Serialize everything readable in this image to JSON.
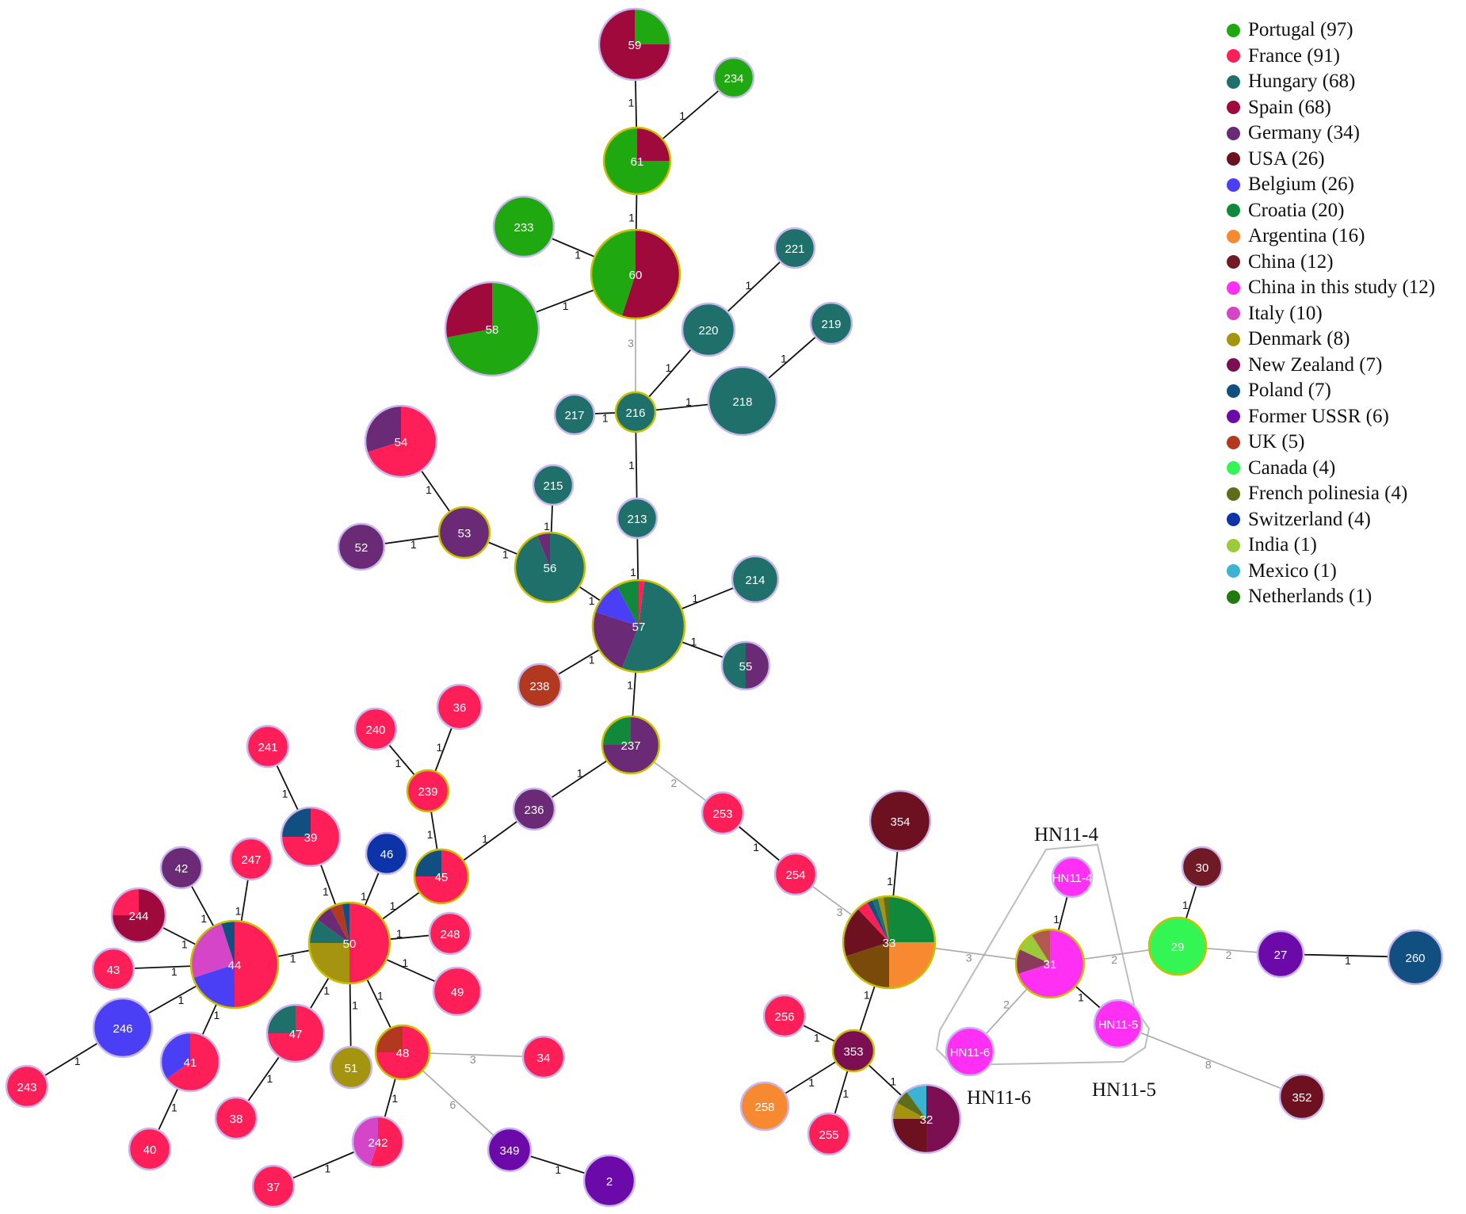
{
  "legend": [
    {
      "label": "Portugal (97)",
      "color": "#1fa810"
    },
    {
      "label": "France (91)",
      "color": "#ff1f58"
    },
    {
      "label": "Hungary (68)",
      "color": "#1f706a"
    },
    {
      "label": "Spain (68)",
      "color": "#a0093c"
    },
    {
      "label": "Germany (34)",
      "color": "#6a2a75"
    },
    {
      "label": "USA (26)",
      "color": "#6d1020"
    },
    {
      "label": "Belgium (26)",
      "color": "#4b3ff5"
    },
    {
      "label": "Croatia (20)",
      "color": "#108a3a"
    },
    {
      "label": "Argentina (16)",
      "color": "#f78a30"
    },
    {
      "label": "China (12)",
      "color": "#6f1a24"
    },
    {
      "label": "China in this study (12)",
      "color": "#ff30f3"
    },
    {
      "label": "Italy (10)",
      "color": "#d545c8"
    },
    {
      "label": "Denmark (8)",
      "color": "#a49410"
    },
    {
      "label": "New Zealand (7)",
      "color": "#7b0f52"
    },
    {
      "label": "Poland (7)",
      "color": "#104f80"
    },
    {
      "label": "Former USSR (6)",
      "color": "#6b0aa8"
    },
    {
      "label": "UK (5)",
      "color": "#b2381f"
    },
    {
      "label": "Canada (4)",
      "color": "#33f554"
    },
    {
      "label": "French polinesia (4)",
      "color": "#5f6c1a"
    },
    {
      "label": "Switzerland (4)",
      "color": "#0c34a8"
    },
    {
      "label": "India (1)",
      "color": "#9ccb3a"
    },
    {
      "label": "Mexico (1)",
      "color": "#3ab4d2"
    },
    {
      "label": "Netherlands (1)",
      "color": "#207a10"
    }
  ],
  "group_labels": {
    "hn11_4": "HN11-4",
    "hn11_5": "HN11-5",
    "hn11_6": "HN11-6"
  },
  "nodes": [
    {
      "id": "59",
      "parts": [
        [
          "#1fa810",
          1
        ],
        [
          "#a0093c",
          3
        ]
      ],
      "border": "#c9b8f0"
    },
    {
      "id": "234",
      "parts": [
        [
          "#1fa810",
          1
        ]
      ],
      "border": "#c9b8f0"
    },
    {
      "id": "61",
      "parts": [
        [
          "#a0093c",
          1
        ],
        [
          "#1fa810",
          3
        ]
      ],
      "border": "#c8c000"
    },
    {
      "id": "233",
      "parts": [
        [
          "#1fa810",
          1
        ]
      ],
      "border": "#c9b8f0"
    },
    {
      "id": "60",
      "parts": [
        [
          "#a0093c",
          55
        ],
        [
          "#1fa810",
          45
        ]
      ],
      "border": "#c8c000"
    },
    {
      "id": "58",
      "parts": [
        [
          "#1fa810",
          72
        ],
        [
          "#a0093c",
          28
        ]
      ],
      "border": "#c9b8f0"
    },
    {
      "id": "221",
      "parts": [
        [
          "#1f706a",
          1
        ]
      ],
      "border": "#c9b8f0"
    },
    {
      "id": "220",
      "parts": [
        [
          "#1f706a",
          1
        ]
      ],
      "border": "#c9b8f0"
    },
    {
      "id": "219",
      "parts": [
        [
          "#1f706a",
          1
        ]
      ],
      "border": "#c9b8f0"
    },
    {
      "id": "218",
      "parts": [
        [
          "#1f706a",
          1
        ]
      ],
      "border": "#c9b8f0"
    },
    {
      "id": "217",
      "parts": [
        [
          "#1f706a",
          1
        ]
      ],
      "border": "#c9b8f0"
    },
    {
      "id": "216",
      "parts": [
        [
          "#1f706a",
          1
        ]
      ],
      "border": "#c8c000"
    },
    {
      "id": "54",
      "parts": [
        [
          "#ff1f58",
          70
        ],
        [
          "#6a2a75",
          30
        ]
      ],
      "border": "#c9b8f0"
    },
    {
      "id": "215",
      "parts": [
        [
          "#1f706a",
          1
        ]
      ],
      "border": "#c9b8f0"
    },
    {
      "id": "213",
      "parts": [
        [
          "#1f706a",
          1
        ]
      ],
      "border": "#c9b8f0"
    },
    {
      "id": "53",
      "parts": [
        [
          "#6a2a75",
          1
        ]
      ],
      "border": "#c8c000"
    },
    {
      "id": "52",
      "parts": [
        [
          "#6a2a75",
          1
        ]
      ],
      "border": "#c9b8f0"
    },
    {
      "id": "56",
      "parts": [
        [
          "#1f706a",
          94
        ],
        [
          "#6a2a75",
          6
        ]
      ],
      "border": "#c8c000"
    },
    {
      "id": "57",
      "parts": [
        [
          "#ff1f58",
          2
        ],
        [
          "#1f706a",
          54
        ],
        [
          "#6a2a75",
          24
        ],
        [
          "#4b3ff5",
          12
        ],
        [
          "#108a3a",
          8
        ]
      ],
      "border": "#c8c000"
    },
    {
      "id": "214",
      "parts": [
        [
          "#1f706a",
          1
        ]
      ],
      "border": "#c9b8f0"
    },
    {
      "id": "55",
      "parts": [
        [
          "#6a2a75",
          1
        ],
        [
          "#1f706a",
          1
        ]
      ],
      "border": "#c9b8f0"
    },
    {
      "id": "238",
      "parts": [
        [
          "#b2381f",
          1
        ]
      ],
      "border": "#c9b8f0"
    },
    {
      "id": "36",
      "parts": [
        [
          "#ff1f58",
          1
        ]
      ],
      "border": "#c9b8f0"
    },
    {
      "id": "240",
      "parts": [
        [
          "#ff1f58",
          1
        ]
      ],
      "border": "#c9b8f0"
    },
    {
      "id": "241",
      "parts": [
        [
          "#ff1f58",
          1
        ]
      ],
      "border": "#c9b8f0"
    },
    {
      "id": "239",
      "parts": [
        [
          "#ff1f58",
          1
        ]
      ],
      "border": "#c8c000"
    },
    {
      "id": "237",
      "parts": [
        [
          "#6a2a75",
          75
        ],
        [
          "#108a3a",
          25
        ]
      ],
      "border": "#c8c000"
    },
    {
      "id": "236",
      "parts": [
        [
          "#6a2a75",
          1
        ]
      ],
      "border": "#c9b8f0"
    },
    {
      "id": "253",
      "parts": [
        [
          "#ff1f58",
          1
        ]
      ],
      "border": "#c9b8f0"
    },
    {
      "id": "354",
      "parts": [
        [
          "#6d1020",
          1
        ]
      ],
      "border": "#c9b8f0"
    },
    {
      "id": "39",
      "parts": [
        [
          "#ff1f58",
          75
        ],
        [
          "#104f80",
          25
        ]
      ],
      "border": "#c9b8f0"
    },
    {
      "id": "46",
      "parts": [
        [
          "#0c34a8",
          1
        ]
      ],
      "border": "#c9b8f0"
    },
    {
      "id": "247",
      "parts": [
        [
          "#ff1f58",
          1
        ]
      ],
      "border": "#c9b8f0"
    },
    {
      "id": "42",
      "parts": [
        [
          "#6a2a75",
          1
        ]
      ],
      "border": "#c9b8f0"
    },
    {
      "id": "45",
      "parts": [
        [
          "#ff1f58",
          75
        ],
        [
          "#104f80",
          25
        ]
      ],
      "border": "#c8c000"
    },
    {
      "id": "254",
      "parts": [
        [
          "#ff1f58",
          1
        ]
      ],
      "border": "#c9b8f0"
    },
    {
      "id": "HN11-4",
      "parts": [
        [
          "#ff30f3",
          1
        ]
      ],
      "border": "#c9b8f0"
    },
    {
      "id": "30",
      "parts": [
        [
          "#6f1a24",
          1
        ]
      ],
      "border": "#c9b8f0"
    },
    {
      "id": "244",
      "parts": [
        [
          "#a0093c",
          75
        ],
        [
          "#ff1f58",
          25
        ]
      ],
      "border": "#c9b8f0"
    },
    {
      "id": "50",
      "parts": [
        [
          "#ff1f58",
          50
        ],
        [
          "#a49410",
          25
        ],
        [
          "#1f706a",
          10
        ],
        [
          "#6a2a75",
          7
        ],
        [
          "#b2381f",
          5
        ],
        [
          "#104f80",
          3
        ]
      ],
      "border": "#c8c000"
    },
    {
      "id": "248",
      "parts": [
        [
          "#ff1f58",
          1
        ]
      ],
      "border": "#c9b8f0"
    },
    {
      "id": "33",
      "parts": [
        [
          "#108a3a",
          25
        ],
        [
          "#f78a30",
          25
        ],
        [
          "#7a4a0a",
          20
        ],
        [
          "#6d1020",
          18
        ],
        [
          "#ff1f58",
          4
        ],
        [
          "#104f80",
          2
        ],
        [
          "#1f706a",
          2
        ],
        [
          "#a49410",
          2
        ],
        [
          "#5f6c1a",
          2
        ]
      ],
      "border": "#c8c000"
    },
    {
      "id": "31",
      "parts": [
        [
          "#ff30f3",
          70
        ],
        [
          "#8a3a5a",
          12
        ],
        [
          "#9ccb3a",
          9
        ],
        [
          "#b25a50",
          9
        ]
      ],
      "border": "#c8c000"
    },
    {
      "id": "29",
      "parts": [
        [
          "#33f554",
          1
        ]
      ],
      "border": "#c8c000"
    },
    {
      "id": "27",
      "parts": [
        [
          "#6b0aa8",
          1
        ]
      ],
      "border": "#c9b8f0"
    },
    {
      "id": "260",
      "parts": [
        [
          "#104f80",
          1
        ]
      ],
      "border": "#c9b8f0"
    },
    {
      "id": "43",
      "parts": [
        [
          "#ff1f58",
          1
        ]
      ],
      "border": "#c9b8f0"
    },
    {
      "id": "44",
      "parts": [
        [
          "#ff1f58",
          50
        ],
        [
          "#4b3ff5",
          20
        ],
        [
          "#d545c8",
          25
        ],
        [
          "#104f80",
          5
        ]
      ],
      "border": "#c8c000"
    },
    {
      "id": "49",
      "parts": [
        [
          "#ff1f58",
          1
        ]
      ],
      "border": "#c9b8f0"
    },
    {
      "id": "246",
      "parts": [
        [
          "#4b3ff5",
          1
        ]
      ],
      "border": "#c9b8f0"
    },
    {
      "id": "47",
      "parts": [
        [
          "#ff1f58",
          75
        ],
        [
          "#1f706a",
          25
        ]
      ],
      "border": "#c9b8f0"
    },
    {
      "id": "256",
      "parts": [
        [
          "#ff1f58",
          1
        ]
      ],
      "border": "#c9b8f0"
    },
    {
      "id": "HN11-5",
      "parts": [
        [
          "#ff30f3",
          1
        ]
      ],
      "border": "#c9b8f0"
    },
    {
      "id": "HN11-6",
      "parts": [
        [
          "#ff30f3",
          1
        ]
      ],
      "border": "#c9b8f0"
    },
    {
      "id": "41",
      "parts": [
        [
          "#ff1f58",
          65
        ],
        [
          "#4b3ff5",
          35
        ]
      ],
      "border": "#c9b8f0"
    },
    {
      "id": "51",
      "parts": [
        [
          "#a49410",
          1
        ]
      ],
      "border": "#c9b8f0"
    },
    {
      "id": "48",
      "parts": [
        [
          "#ff1f58",
          75
        ],
        [
          "#b2381f",
          25
        ]
      ],
      "border": "#c8c000"
    },
    {
      "id": "34",
      "parts": [
        [
          "#ff1f58",
          1
        ]
      ],
      "border": "#c9b8f0"
    },
    {
      "id": "353",
      "parts": [
        [
          "#7b0f52",
          1
        ]
      ],
      "border": "#c8c000"
    },
    {
      "id": "243",
      "parts": [
        [
          "#ff1f58",
          1
        ]
      ],
      "border": "#c9b8f0"
    },
    {
      "id": "38",
      "parts": [
        [
          "#ff1f58",
          1
        ]
      ],
      "border": "#c9b8f0"
    },
    {
      "id": "258",
      "parts": [
        [
          "#f78a30",
          1
        ]
      ],
      "border": "#c9b8f0"
    },
    {
      "id": "32",
      "parts": [
        [
          "#7b0f52",
          50
        ],
        [
          "#6d1020",
          25
        ],
        [
          "#a49410",
          8
        ],
        [
          "#5f6c1a",
          7
        ],
        [
          "#3ab4d2",
          10
        ]
      ],
      "border": "#c9b8f0"
    },
    {
      "id": "352",
      "parts": [
        [
          "#6d1020",
          1
        ]
      ],
      "border": "#c9b8f0"
    },
    {
      "id": "242",
      "parts": [
        [
          "#ff1f58",
          55
        ],
        [
          "#d545c8",
          45
        ]
      ],
      "border": "#c9b8f0"
    },
    {
      "id": "349",
      "parts": [
        [
          "#6b0aa8",
          1
        ]
      ],
      "border": "#c9b8f0"
    },
    {
      "id": "40",
      "parts": [
        [
          "#ff1f58",
          1
        ]
      ],
      "border": "#c9b8f0"
    },
    {
      "id": "255",
      "parts": [
        [
          "#ff1f58",
          1
        ]
      ],
      "border": "#c9b8f0"
    },
    {
      "id": "2",
      "parts": [
        [
          "#6b0aa8",
          1
        ]
      ],
      "border": "#c9b8f0"
    },
    {
      "id": "37",
      "parts": [
        [
          "#ff1f58",
          1
        ]
      ],
      "border": "#c9b8f0"
    }
  ],
  "edges": [
    {
      "a": "59",
      "b": "61",
      "label": "1",
      "gray": false
    },
    {
      "a": "234",
      "b": "61",
      "label": "1",
      "gray": false
    },
    {
      "a": "61",
      "b": "60",
      "label": "1",
      "gray": false
    },
    {
      "a": "233",
      "b": "60",
      "label": "1",
      "gray": false
    },
    {
      "a": "58",
      "b": "60",
      "label": "1",
      "gray": false
    },
    {
      "a": "60",
      "b": "216",
      "label": "3",
      "gray": true
    },
    {
      "a": "221",
      "b": "220",
      "label": "1",
      "gray": false
    },
    {
      "a": "220",
      "b": "216",
      "label": "1",
      "gray": false
    },
    {
      "a": "219",
      "b": "218",
      "label": "1",
      "gray": false
    },
    {
      "a": "218",
      "b": "216",
      "label": "1",
      "gray": false
    },
    {
      "a": "217",
      "b": "216",
      "label": "1",
      "gray": false
    },
    {
      "a": "216",
      "b": "213",
      "label": "1",
      "gray": false
    },
    {
      "a": "213",
      "b": "57",
      "label": "1",
      "gray": false
    },
    {
      "a": "54",
      "b": "53",
      "label": "1",
      "gray": false
    },
    {
      "a": "52",
      "b": "53",
      "label": "1",
      "gray": false
    },
    {
      "a": "53",
      "b": "56",
      "label": "1",
      "gray": false
    },
    {
      "a": "215",
      "b": "56",
      "label": "1",
      "gray": false
    },
    {
      "a": "56",
      "b": "57",
      "label": "1",
      "gray": false
    },
    {
      "a": "214",
      "b": "57",
      "label": "1",
      "gray": false
    },
    {
      "a": "55",
      "b": "57",
      "label": "1",
      "gray": false
    },
    {
      "a": "238",
      "b": "57",
      "label": "1",
      "gray": false
    },
    {
      "a": "57",
      "b": "237",
      "label": "1",
      "gray": false
    },
    {
      "a": "237",
      "b": "236",
      "label": "1",
      "gray": false
    },
    {
      "a": "237",
      "b": "253",
      "label": "2",
      "gray": true
    },
    {
      "a": "236",
      "b": "45",
      "label": "1",
      "gray": false
    },
    {
      "a": "36",
      "b": "239",
      "label": "1",
      "gray": false
    },
    {
      "a": "240",
      "b": "239",
      "label": "1",
      "gray": false
    },
    {
      "a": "239",
      "b": "45",
      "label": "1",
      "gray": false
    },
    {
      "a": "45",
      "b": "50",
      "label": "1",
      "gray": false
    },
    {
      "a": "241",
      "b": "39",
      "label": "1",
      "gray": false
    },
    {
      "a": "39",
      "b": "50",
      "label": "1",
      "gray": false
    },
    {
      "a": "46",
      "b": "50",
      "label": "1",
      "gray": false
    },
    {
      "a": "247",
      "b": "44",
      "label": "1",
      "gray": false
    },
    {
      "a": "42",
      "b": "44",
      "label": "1",
      "gray": false
    },
    {
      "a": "244",
      "b": "44",
      "label": "1",
      "gray": false
    },
    {
      "a": "43",
      "b": "44",
      "label": "1",
      "gray": false
    },
    {
      "a": "246",
      "b": "44",
      "label": "1",
      "gray": false
    },
    {
      "a": "41",
      "b": "44",
      "label": "1",
      "gray": false
    },
    {
      "a": "44",
      "b": "50",
      "label": "1",
      "gray": false
    },
    {
      "a": "243",
      "b": "246",
      "label": "1",
      "gray": false
    },
    {
      "a": "40",
      "b": "41",
      "label": "1",
      "gray": false
    },
    {
      "a": "248",
      "b": "50",
      "label": "1",
      "gray": false
    },
    {
      "a": "49",
      "b": "50",
      "label": "1",
      "gray": false
    },
    {
      "a": "47",
      "b": "50",
      "label": "1",
      "gray": false
    },
    {
      "a": "51",
      "b": "50",
      "label": "1",
      "gray": false
    },
    {
      "a": "48",
      "b": "50",
      "label": "1",
      "gray": false
    },
    {
      "a": "38",
      "b": "47",
      "label": "1",
      "gray": false
    },
    {
      "a": "48",
      "b": "34",
      "label": "3",
      "gray": true
    },
    {
      "a": "48",
      "b": "349",
      "label": "6",
      "gray": true
    },
    {
      "a": "242",
      "b": "48",
      "label": "1",
      "gray": false
    },
    {
      "a": "37",
      "b": "242",
      "label": "1",
      "gray": false
    },
    {
      "a": "349",
      "b": "2",
      "label": "1",
      "gray": false
    },
    {
      "a": "253",
      "b": "254",
      "label": "1",
      "gray": false
    },
    {
      "a": "254",
      "b": "33",
      "label": "3",
      "gray": true
    },
    {
      "a": "354",
      "b": "33",
      "label": "1",
      "gray": false
    },
    {
      "a": "33",
      "b": "353",
      "label": "1",
      "gray": false
    },
    {
      "a": "33",
      "b": "31",
      "label": "3",
      "gray": true
    },
    {
      "a": "256",
      "b": "353",
      "label": "1",
      "gray": false
    },
    {
      "a": "258",
      "b": "353",
      "label": "1",
      "gray": false
    },
    {
      "a": "255",
      "b": "353",
      "label": "1",
      "gray": false
    },
    {
      "a": "32",
      "b": "353",
      "label": "1",
      "gray": false
    },
    {
      "a": "HN11-4",
      "b": "31",
      "label": "1",
      "gray": false
    },
    {
      "a": "31",
      "b": "29",
      "label": "2",
      "gray": true
    },
    {
      "a": "31",
      "b": "HN11-6",
      "label": "2",
      "gray": true
    },
    {
      "a": "31",
      "b": "HN11-5",
      "label": "1",
      "gray": false
    },
    {
      "a": "HN11-5",
      "b": "352",
      "label": "8",
      "gray": true
    },
    {
      "a": "30",
      "b": "29",
      "label": "1",
      "gray": false
    },
    {
      "a": "29",
      "b": "27",
      "label": "2",
      "gray": true
    },
    {
      "a": "27",
      "b": "260",
      "label": "1",
      "gray": false
    }
  ]
}
